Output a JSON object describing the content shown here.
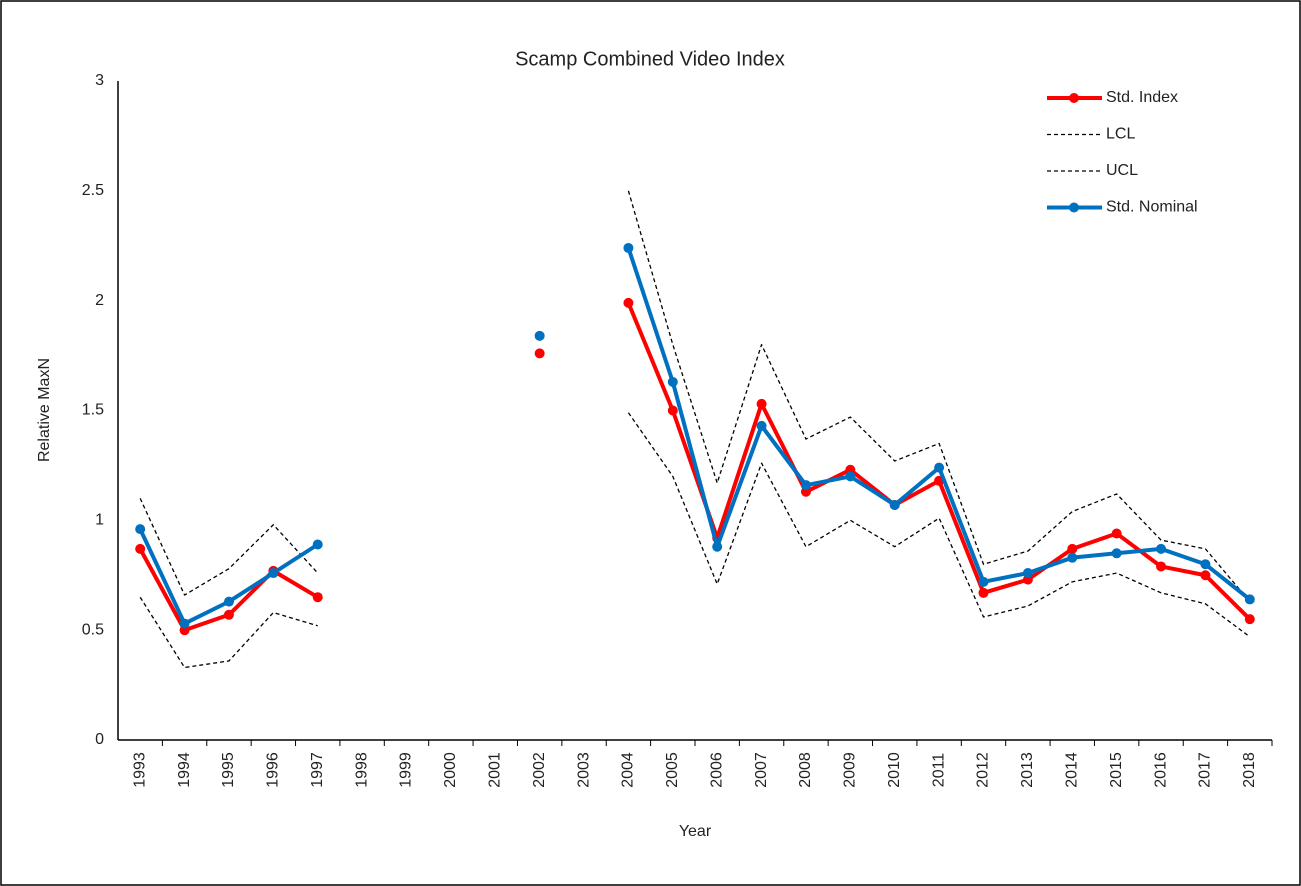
{
  "chart_data": {
    "type": "line",
    "title": "Scamp Combined Video Index",
    "x_label": "Year",
    "y_label": "Relative MaxN",
    "categories": [
      "1993",
      "1994",
      "1995",
      "1996",
      "1997",
      "1998",
      "1999",
      "2000",
      "2001",
      "2002",
      "2003",
      "2004",
      "2005",
      "2006",
      "2007",
      "2008",
      "2009",
      "2010",
      "2011",
      "2012",
      "2013",
      "2014",
      "2015",
      "2016",
      "2017",
      "2018"
    ],
    "series": [
      {
        "name": "Std. Index",
        "color": "#ff0000",
        "markers": true,
        "dashed": false,
        "values": [
          0.87,
          0.5,
          0.57,
          0.77,
          0.65,
          null,
          null,
          null,
          null,
          1.76,
          null,
          1.99,
          1.5,
          0.92,
          1.53,
          1.13,
          1.23,
          1.07,
          1.18,
          0.67,
          0.73,
          0.87,
          0.94,
          0.79,
          0.75,
          0.55
        ]
      },
      {
        "name": "LCL",
        "color": "#000000",
        "markers": false,
        "dashed": true,
        "values": [
          0.65,
          0.33,
          0.36,
          0.58,
          0.52,
          null,
          null,
          null,
          null,
          null,
          null,
          1.49,
          1.2,
          0.71,
          1.26,
          0.88,
          1.0,
          0.88,
          1.01,
          0.56,
          0.61,
          0.72,
          0.76,
          0.67,
          0.62,
          0.47
        ]
      },
      {
        "name": "UCL",
        "color": "#000000",
        "markers": false,
        "dashed": true,
        "values": [
          1.1,
          0.66,
          0.78,
          0.98,
          0.76,
          null,
          null,
          null,
          null,
          null,
          null,
          2.5,
          1.8,
          1.17,
          1.8,
          1.37,
          1.47,
          1.27,
          1.35,
          0.8,
          0.86,
          1.04,
          1.12,
          0.91,
          0.87,
          0.63
        ]
      },
      {
        "name": "Std. Nominal",
        "color": "#0070c0",
        "markers": true,
        "dashed": false,
        "values": [
          0.96,
          0.53,
          0.63,
          0.76,
          0.89,
          null,
          null,
          null,
          null,
          1.84,
          null,
          2.24,
          1.63,
          0.88,
          1.43,
          1.16,
          1.2,
          1.07,
          1.24,
          0.72,
          0.76,
          0.83,
          0.85,
          0.87,
          0.8,
          0.64
        ]
      }
    ],
    "ylim": [
      0,
      3
    ],
    "yticks": [
      0,
      0.5,
      1,
      1.5,
      2,
      2.5,
      3
    ],
    "grid": false,
    "legend": "top-right"
  }
}
